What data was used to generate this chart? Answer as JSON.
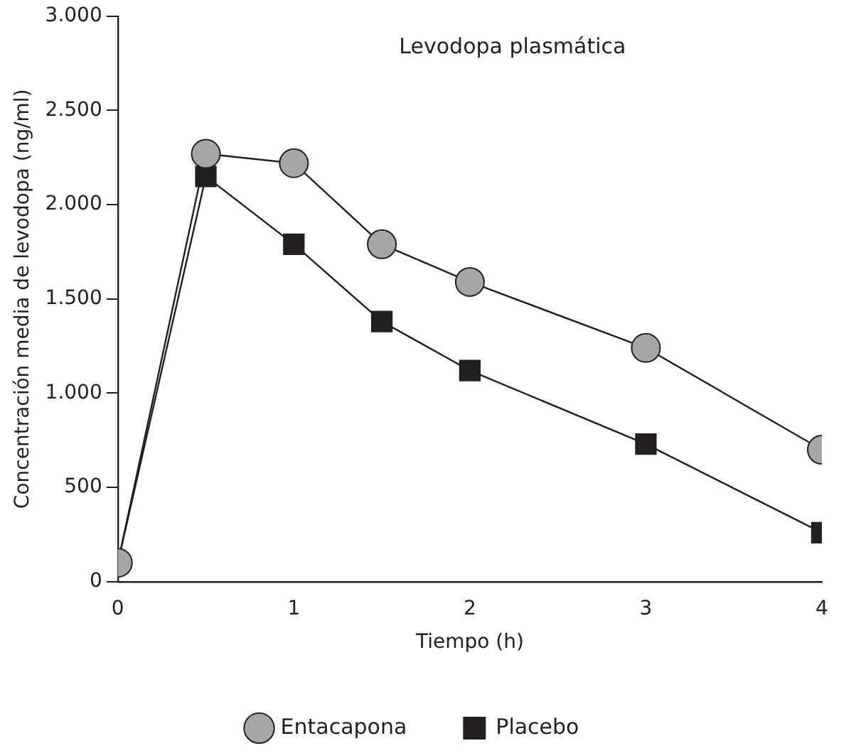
{
  "chart_data": {
    "type": "line",
    "title": "Levodopa plasmática",
    "xlabel": "Tiempo (h)",
    "ylabel": "Concentración media de levodopa (ng/ml)",
    "x": [
      0,
      0.5,
      1,
      1.5,
      2,
      3,
      4
    ],
    "series": [
      {
        "name": "Entacapona",
        "color": "#a6a6a6",
        "marker": "circle",
        "values": [
          100,
          2270,
          2220,
          1790,
          1590,
          1240,
          700
        ]
      },
      {
        "name": "Placebo",
        "color": "#231f20",
        "marker": "square",
        "values": [
          100,
          2150,
          1790,
          1380,
          1120,
          730,
          260
        ]
      }
    ],
    "xlim": [
      0,
      4
    ],
    "xticks": [
      0,
      1,
      2,
      3,
      4
    ],
    "ylim": [
      0,
      3000
    ],
    "yticks": [
      0,
      500,
      {
        "value": 1000,
        "label": "1.000"
      },
      {
        "value": 1500,
        "label": "1.500"
      },
      {
        "value": 2000,
        "label": "2.000"
      },
      {
        "value": 2500,
        "label": "2.500"
      },
      {
        "value": 3000,
        "label": "3.000"
      }
    ],
    "grid": false,
    "legend": "bottom",
    "line_style": "solid"
  }
}
